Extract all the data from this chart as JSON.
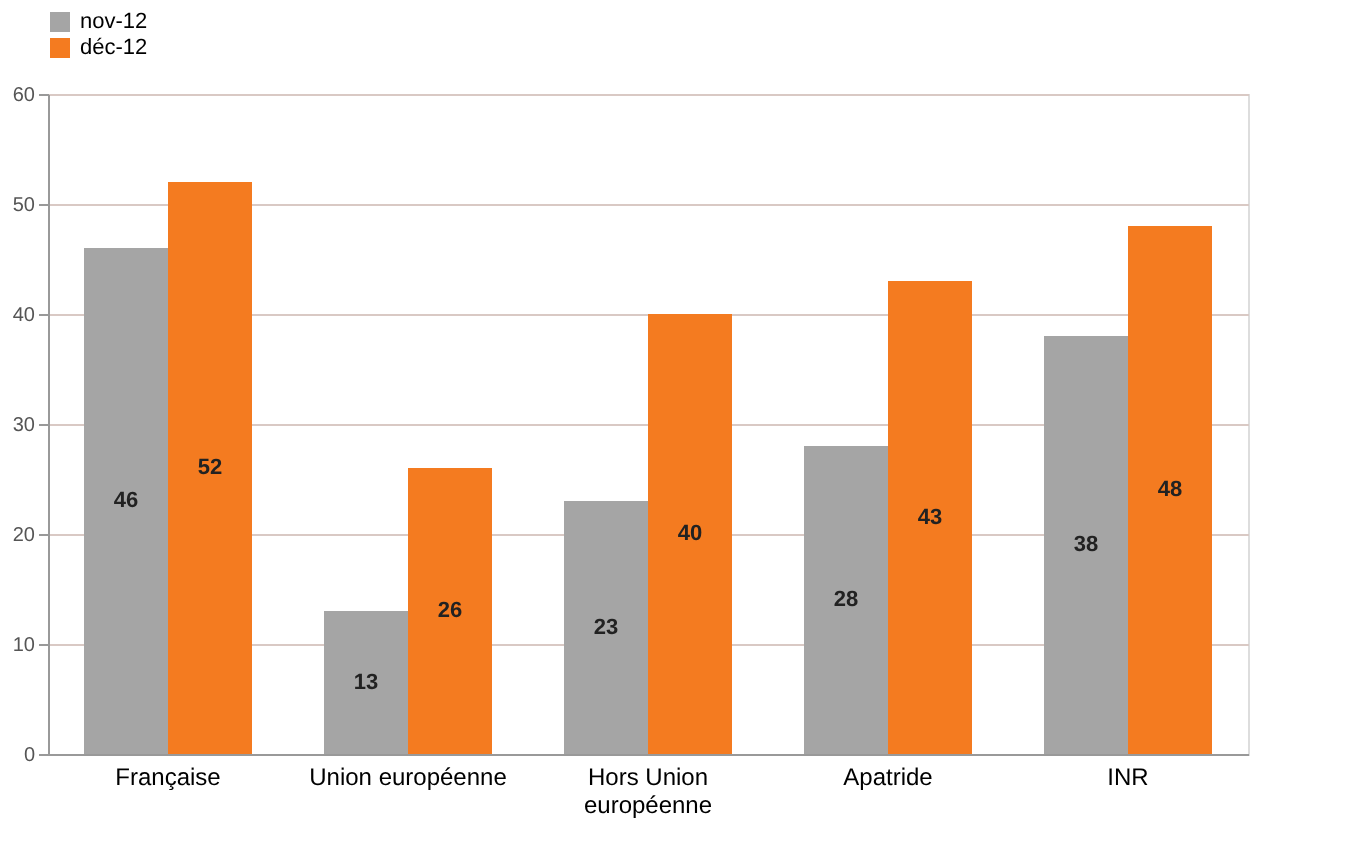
{
  "chart_data": {
    "type": "bar",
    "categories": [
      "Française",
      "Union européenne",
      "Hors Union\neuropéenne",
      "Apatride",
      "INR"
    ],
    "series": [
      {
        "name": "nov-12",
        "color": "#a5a5a5",
        "values": [
          46,
          13,
          23,
          28,
          38
        ]
      },
      {
        "name": "déc-12",
        "color": "#f47b20",
        "values": [
          52,
          26,
          40,
          43,
          48
        ]
      }
    ],
    "ylim": [
      0,
      60
    ],
    "yticks": [
      0,
      10,
      20,
      30,
      40,
      50,
      60
    ],
    "grid": "y",
    "legend": "top",
    "data_labels": true
  }
}
